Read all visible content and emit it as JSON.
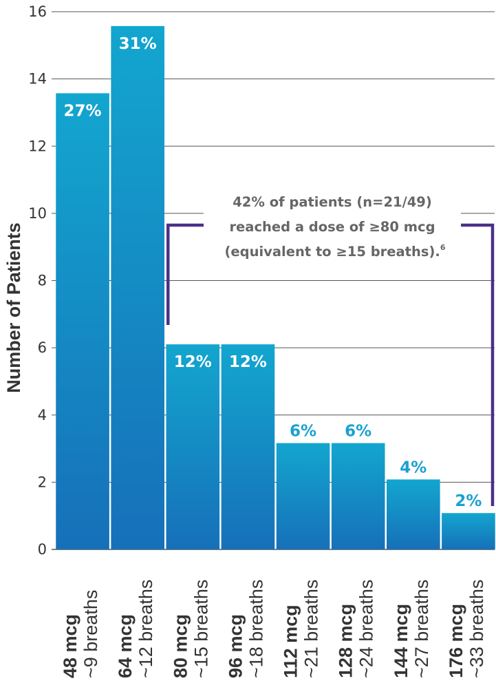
{
  "chart_data": {
    "type": "bar",
    "ylabel": "Number of Patients",
    "ylim": [
      0,
      16
    ],
    "yticks": [
      "0",
      "2",
      "4",
      "6",
      "8",
      "10",
      "12",
      "14",
      "16"
    ],
    "grid": true,
    "categories": [
      {
        "dose": "48 mcg",
        "breaths": "~9 breaths"
      },
      {
        "dose": "64 mcg",
        "breaths": "~12 breaths"
      },
      {
        "dose": "80 mcg",
        "breaths": "~15 breaths"
      },
      {
        "dose": "96 mcg",
        "breaths": "~18 breaths"
      },
      {
        "dose": "112 mcg",
        "breaths": "~21 breaths"
      },
      {
        "dose": "128 mcg",
        "breaths": "~24 breaths"
      },
      {
        "dose": "144 mcg",
        "breaths": "~27 breaths"
      },
      {
        "dose": "176 mcg",
        "breaths": "~33 breaths"
      }
    ],
    "values": [
      13,
      15,
      6,
      6,
      3,
      3,
      2,
      1
    ],
    "data_labels": [
      "27%",
      "31%",
      "12%",
      "12%",
      "6%",
      "6%",
      "4%",
      "2%"
    ],
    "bracket_range": [
      2,
      7
    ],
    "annotation": {
      "lines": [
        "42% of patients (n=21/49)",
        "reached a dose of ≥80 mcg",
        "(equivalent to ≥15 breaths)."
      ],
      "footnote": "6"
    },
    "colors": {
      "bar_top": "#13a6cf",
      "bar_bottom": "#1670b9",
      "bracket": "#4b3088",
      "label_outside": "#1aa0d2",
      "grid": "#555555",
      "text": "#333333"
    }
  }
}
